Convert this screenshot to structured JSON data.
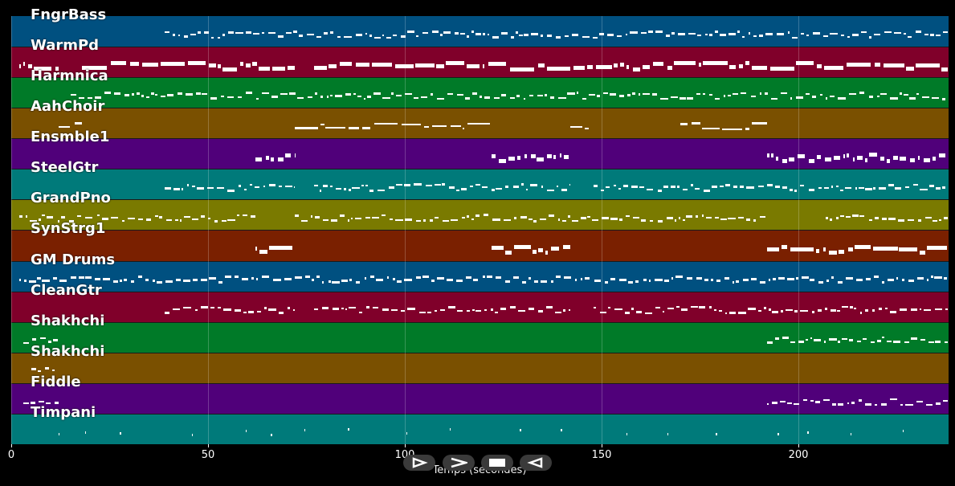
{
  "tracks": [
    {
      "name": "FngrBass",
      "color": "#005080"
    },
    {
      "name": "WarmPd",
      "color": "#80002a"
    },
    {
      "name": "Harmnica",
      "color": "#007a28"
    },
    {
      "name": "AahChoir",
      "color": "#7a5000"
    },
    {
      "name": "Ensmble1",
      "color": "#50007a"
    },
    {
      "name": "SteelGtr",
      "color": "#007a7a"
    },
    {
      "name": "GrandPno",
      "color": "#7a7a00"
    },
    {
      "name": "SynStrg1",
      "color": "#7a2000"
    },
    {
      "name": "GM Drums",
      "color": "#005080"
    },
    {
      "name": "CleanGtr",
      "color": "#80002a"
    },
    {
      "name": "Shakhchi",
      "color": "#007a28"
    },
    {
      "name": "Shakhchi",
      "color": "#7a5000"
    },
    {
      "name": "Fiddle",
      "color": "#50007a"
    },
    {
      "name": "Timpani",
      "color": "#007a7a"
    }
  ],
  "axis": {
    "label": "Temps (secondes)",
    "ticks": [
      "0",
      "50",
      "100",
      "150",
      "200"
    ],
    "tick_values": [
      0,
      50,
      100,
      150,
      200
    ],
    "max_seconds": 238
  },
  "controls": [
    {
      "name": "play-button",
      "icon": "play-icon"
    },
    {
      "name": "forward-button",
      "icon": "forward-icon"
    },
    {
      "name": "stop-button",
      "icon": "stop-icon"
    },
    {
      "name": "rewind-button",
      "icon": "rewind-icon"
    }
  ]
}
